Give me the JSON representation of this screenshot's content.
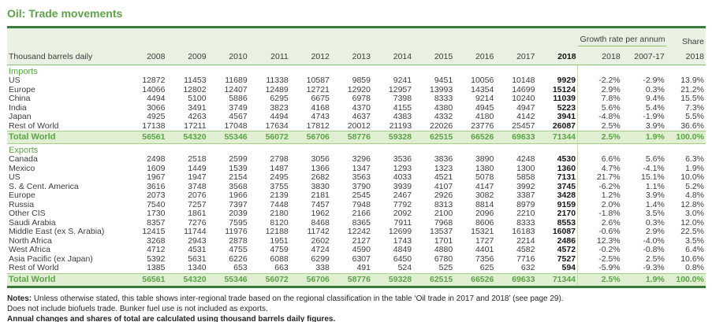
{
  "title": "Oil: Trade movements",
  "colors": {
    "accent_green": "#5ba447",
    "dark_green_border": "#3a7a3a",
    "header_bg": "#e9f1e2",
    "total_row_bg": "#e0eed2"
  },
  "table": {
    "unit_label": "Thousand barrels daily",
    "years": [
      "2008",
      "2009",
      "2010",
      "2011",
      "2012",
      "2013",
      "2014",
      "2015",
      "2016",
      "2017",
      "2018"
    ],
    "growth_header": "Growth rate per annum",
    "growth_years": [
      "2018",
      "2007-17"
    ],
    "share_header": "Share",
    "share_year": "2018",
    "sections": [
      {
        "label": "Imports",
        "rows": [
          {
            "label": "US",
            "values": [
              12872,
              11453,
              11689,
              11338,
              10587,
              9859,
              9241,
              9451,
              10056,
              10148,
              9929
            ],
            "growth": [
              "-2.2%",
              "-2.9%"
            ],
            "share": "13.9%"
          },
          {
            "label": "Europe",
            "values": [
              14066,
              12802,
              12407,
              12489,
              12721,
              12920,
              12957,
              13993,
              14354,
              14699,
              15124
            ],
            "growth": [
              "2.9%",
              "0.3%"
            ],
            "share": "21.2%"
          },
          {
            "label": "China",
            "values": [
              4494,
              5100,
              5886,
              6295,
              6675,
              6978,
              7398,
              8333,
              9214,
              10240,
              11039
            ],
            "growth": [
              "7.8%",
              "9.4%"
            ],
            "share": "15.5%"
          },
          {
            "label": "India",
            "values": [
              3066,
              3491,
              3749,
              3823,
              4168,
              4370,
              4155,
              4380,
              4945,
              4947,
              5223
            ],
            "growth": [
              "5.6%",
              "5.4%"
            ],
            "share": "7.3%"
          },
          {
            "label": "Japan",
            "values": [
              4925,
              4263,
              4567,
              4494,
              4743,
              4637,
              4383,
              4332,
              4180,
              4142,
              3941
            ],
            "growth": [
              "-4.8%",
              "-1.9%"
            ],
            "share": "5.5%"
          },
          {
            "label": "Rest of World",
            "values": [
              17138,
              17211,
              17048,
              17634,
              17812,
              20012,
              21193,
              22026,
              23776,
              25457,
              26087
            ],
            "growth": [
              "2.5%",
              "3.9%"
            ],
            "share": "36.6%"
          }
        ],
        "total": {
          "label": "Total World",
          "values": [
            56561,
            54320,
            55346,
            56072,
            56706,
            58776,
            59328,
            62515,
            66526,
            69633,
            71344
          ],
          "growth": [
            "2.5%",
            "1.9%"
          ],
          "share": "100.0%"
        }
      },
      {
        "label": "Exports",
        "rows": [
          {
            "label": "Canada",
            "values": [
              2498,
              2518,
              2599,
              2798,
              3056,
              3296,
              3536,
              3836,
              3890,
              4248,
              4530
            ],
            "growth": [
              "6.6%",
              "5.6%"
            ],
            "share": "6.3%"
          },
          {
            "label": "Mexico",
            "values": [
              1609,
              1449,
              1539,
              1487,
              1366,
              1347,
              1293,
              1323,
              1380,
              1300,
              1360
            ],
            "growth": [
              "4.7%",
              "-4.1%"
            ],
            "share": "1.9%"
          },
          {
            "label": "US",
            "values": [
              1967,
              1947,
              2154,
              2495,
              2682,
              3563,
              4033,
              4521,
              5078,
              5858,
              7131
            ],
            "growth": [
              "21.7%",
              "15.1%"
            ],
            "share": "10.0%"
          },
          {
            "label": "S. & Cent. America",
            "values": [
              3616,
              3748,
              3568,
              3755,
              3830,
              3790,
              3939,
              4107,
              4147,
              3992,
              3745
            ],
            "growth": [
              "-6.2%",
              "1.1%"
            ],
            "share": "5.2%"
          },
          {
            "label": "Europe",
            "values": [
              2073,
              2076,
              1966,
              2139,
              2181,
              2545,
              2467,
              2926,
              3082,
              3387,
              3428
            ],
            "growth": [
              "1.2%",
              "3.9%"
            ],
            "share": "4.8%"
          },
          {
            "label": "Russia",
            "values": [
              7540,
              7257,
              7397,
              7448,
              7457,
              7948,
              7792,
              8313,
              8814,
              8979,
              9159
            ],
            "growth": [
              "2.0%",
              "1.4%"
            ],
            "share": "12.8%"
          },
          {
            "label": "Other CIS",
            "values": [
              1730,
              1861,
              2039,
              2180,
              1962,
              2166,
              2092,
              2100,
              2096,
              2210,
              2170
            ],
            "growth": [
              "-1.8%",
              "3.5%"
            ],
            "share": "3.0%"
          },
          {
            "label": "Saudi Arabia",
            "values": [
              8357,
              7276,
              7595,
              8120,
              8468,
              8365,
              7911,
              7968,
              8606,
              8333,
              8553
            ],
            "growth": [
              "2.6%",
              "0.3%"
            ],
            "share": "12.0%"
          },
          {
            "label": "Middle East (ex S. Arabia)",
            "values": [
              12415,
              11744,
              11976,
              12188,
              11742,
              12242,
              12699,
              13537,
              15321,
              16183,
              16087
            ],
            "growth": [
              "-0.6%",
              "2.9%"
            ],
            "share": "22.5%"
          },
          {
            "label": "North Africa",
            "values": [
              3268,
              2943,
              2878,
              1951,
              2602,
              2127,
              1743,
              1701,
              1727,
              2214,
              2486
            ],
            "growth": [
              "12.3%",
              "-4.0%"
            ],
            "share": "3.5%"
          },
          {
            "label": "West Africa",
            "values": [
              4712,
              4531,
              4755,
              4759,
              4724,
              4590,
              4849,
              4880,
              4401,
              4582,
              4572
            ],
            "growth": [
              "-0.2%",
              "-0.8%"
            ],
            "share": "6.4%"
          },
          {
            "label": "Asia Pacific (ex Japan)",
            "values": [
              5392,
              5631,
              6226,
              6088,
              6299,
              6307,
              6450,
              6780,
              7356,
              7716,
              7527
            ],
            "growth": [
              "-2.5%",
              "2.5%"
            ],
            "share": "10.6%"
          },
          {
            "label": "Rest of World",
            "values": [
              1385,
              1340,
              653,
              663,
              338,
              491,
              524,
              525,
              625,
              632,
              594
            ],
            "growth": [
              "-5.9%",
              "-9.3%"
            ],
            "share": "0.8%"
          }
        ],
        "total": {
          "label": "Total World",
          "values": [
            56561,
            54320,
            55346,
            56072,
            56706,
            58776,
            59328,
            62515,
            66526,
            69633,
            71344
          ],
          "growth": [
            "2.5%",
            "1.9%"
          ],
          "share": "100.0%"
        }
      }
    ]
  },
  "notes": {
    "label": "Notes:",
    "line1": "Unless otherwise stated, this table shows inter-regional trade based on the regional classification in the table ‘Oil trade in 2017 and 2018’ (see page 29).",
    "line2": "Does not include biofuels trade. Bunker fuel use is not included as exports.",
    "line3": "Annual changes and shares of total are calculated using thousand barrels daily figures."
  }
}
